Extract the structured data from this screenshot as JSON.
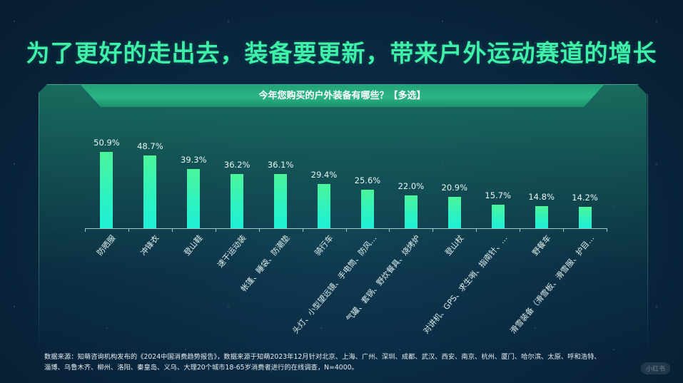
{
  "title": "为了更好的走出去，装备要更新，带来户外运动赛道的增长",
  "panel": {
    "header": "今年您购买的户外装备有哪些？【多选】"
  },
  "chart_data": {
    "type": "bar",
    "title": "今年您购买的户外装备有哪些？【多选】",
    "xlabel": "",
    "ylabel": "",
    "grid": false,
    "legend": "none",
    "value_suffix": "%",
    "categories": [
      "防晒服",
      "冲锋衣",
      "登山鞋",
      "速干运动装",
      "帐篷、睡袋、防潮垫",
      "骑行车",
      "头灯、小型望远镜、手电筒、防风…",
      "气罐、套锅、野炊餐具、烧烤炉",
      "登山杖",
      "对讲机、GPS、求生哨、指南针、…",
      "野餐车",
      "滑雪装备（滑雪板、滑雪服、护目…"
    ],
    "values": [
      50.9,
      48.7,
      39.3,
      36.2,
      36.1,
      29.4,
      25.6,
      22.0,
      20.9,
      15.7,
      14.8,
      14.2
    ],
    "labels": [
      "50.9%",
      "48.7%",
      "39.3%",
      "36.2%",
      "36.1%",
      "29.4%",
      "25.6%",
      "22.0%",
      "20.9%",
      "15.7%",
      "14.8%",
      "14.2%"
    ],
    "ylim": [
      0,
      55
    ],
    "colors": {
      "bar_top": "#4cf59a",
      "bar_bottom": "#1ef0d6",
      "title": "#3ef0a8"
    }
  },
  "footer": {
    "line1": "数据来源：知萌咨询机构发布的《2024中国消费趋势报告》，数据来源于知萌2023年12月针对北京、上海、广州、深圳、成都、武汉、西安、南京、杭州、厦门、哈尔滨、太原、呼和浩特、",
    "line2": "淄博、乌鲁木齐、柳州、洛阳、秦皇岛、义乌、大理20个城市18-65岁消费者进行的在线调查，N=4000。"
  },
  "watermark": "小红书"
}
